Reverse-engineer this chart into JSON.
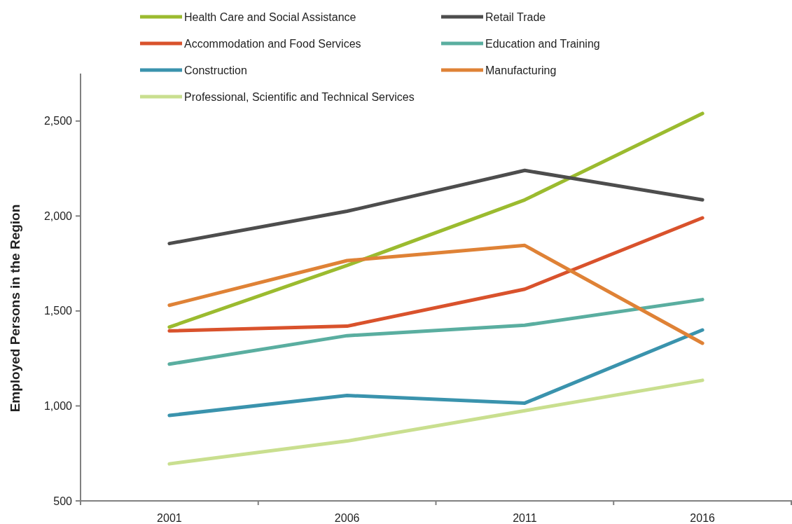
{
  "chart_data": {
    "type": "line",
    "ylabel": "Employed Persons in the Region",
    "categories": [
      "2001",
      "2006",
      "2011",
      "2016"
    ],
    "series": [
      {
        "name": "Health Care and Social Assistance",
        "color": "#9bbb2f",
        "values": [
          1415,
          1740,
          2085,
          2540
        ]
      },
      {
        "name": "Retail Trade",
        "color": "#4d4d4d",
        "values": [
          1855,
          2025,
          2240,
          2085
        ]
      },
      {
        "name": "Accommodation and Food Services",
        "color": "#d9522c",
        "values": [
          1395,
          1420,
          1615,
          1990
        ]
      },
      {
        "name": "Education and Training",
        "color": "#5aaea0",
        "values": [
          1220,
          1370,
          1425,
          1560
        ]
      },
      {
        "name": "Construction",
        "color": "#3a93ad",
        "values": [
          950,
          1055,
          1015,
          1400
        ]
      },
      {
        "name": "Manufacturing",
        "color": "#df8236",
        "values": [
          1530,
          1765,
          1845,
          1330
        ]
      },
      {
        "name": "Professional, Scientific and Technical Services",
        "color": "#c9df8f",
        "values": [
          695,
          815,
          975,
          1135
        ]
      }
    ],
    "ylim": [
      500,
      2750
    ],
    "yticks": [
      {
        "value": 500,
        "label": "500"
      },
      {
        "value": 1000,
        "label": "1,000"
      },
      {
        "value": 1500,
        "label": "1,500"
      },
      {
        "value": 2000,
        "label": "2,000"
      },
      {
        "value": 2500,
        "label": "2,500"
      }
    ],
    "legend": "top",
    "grid": false,
    "marker": "none",
    "line_style": "solid"
  }
}
